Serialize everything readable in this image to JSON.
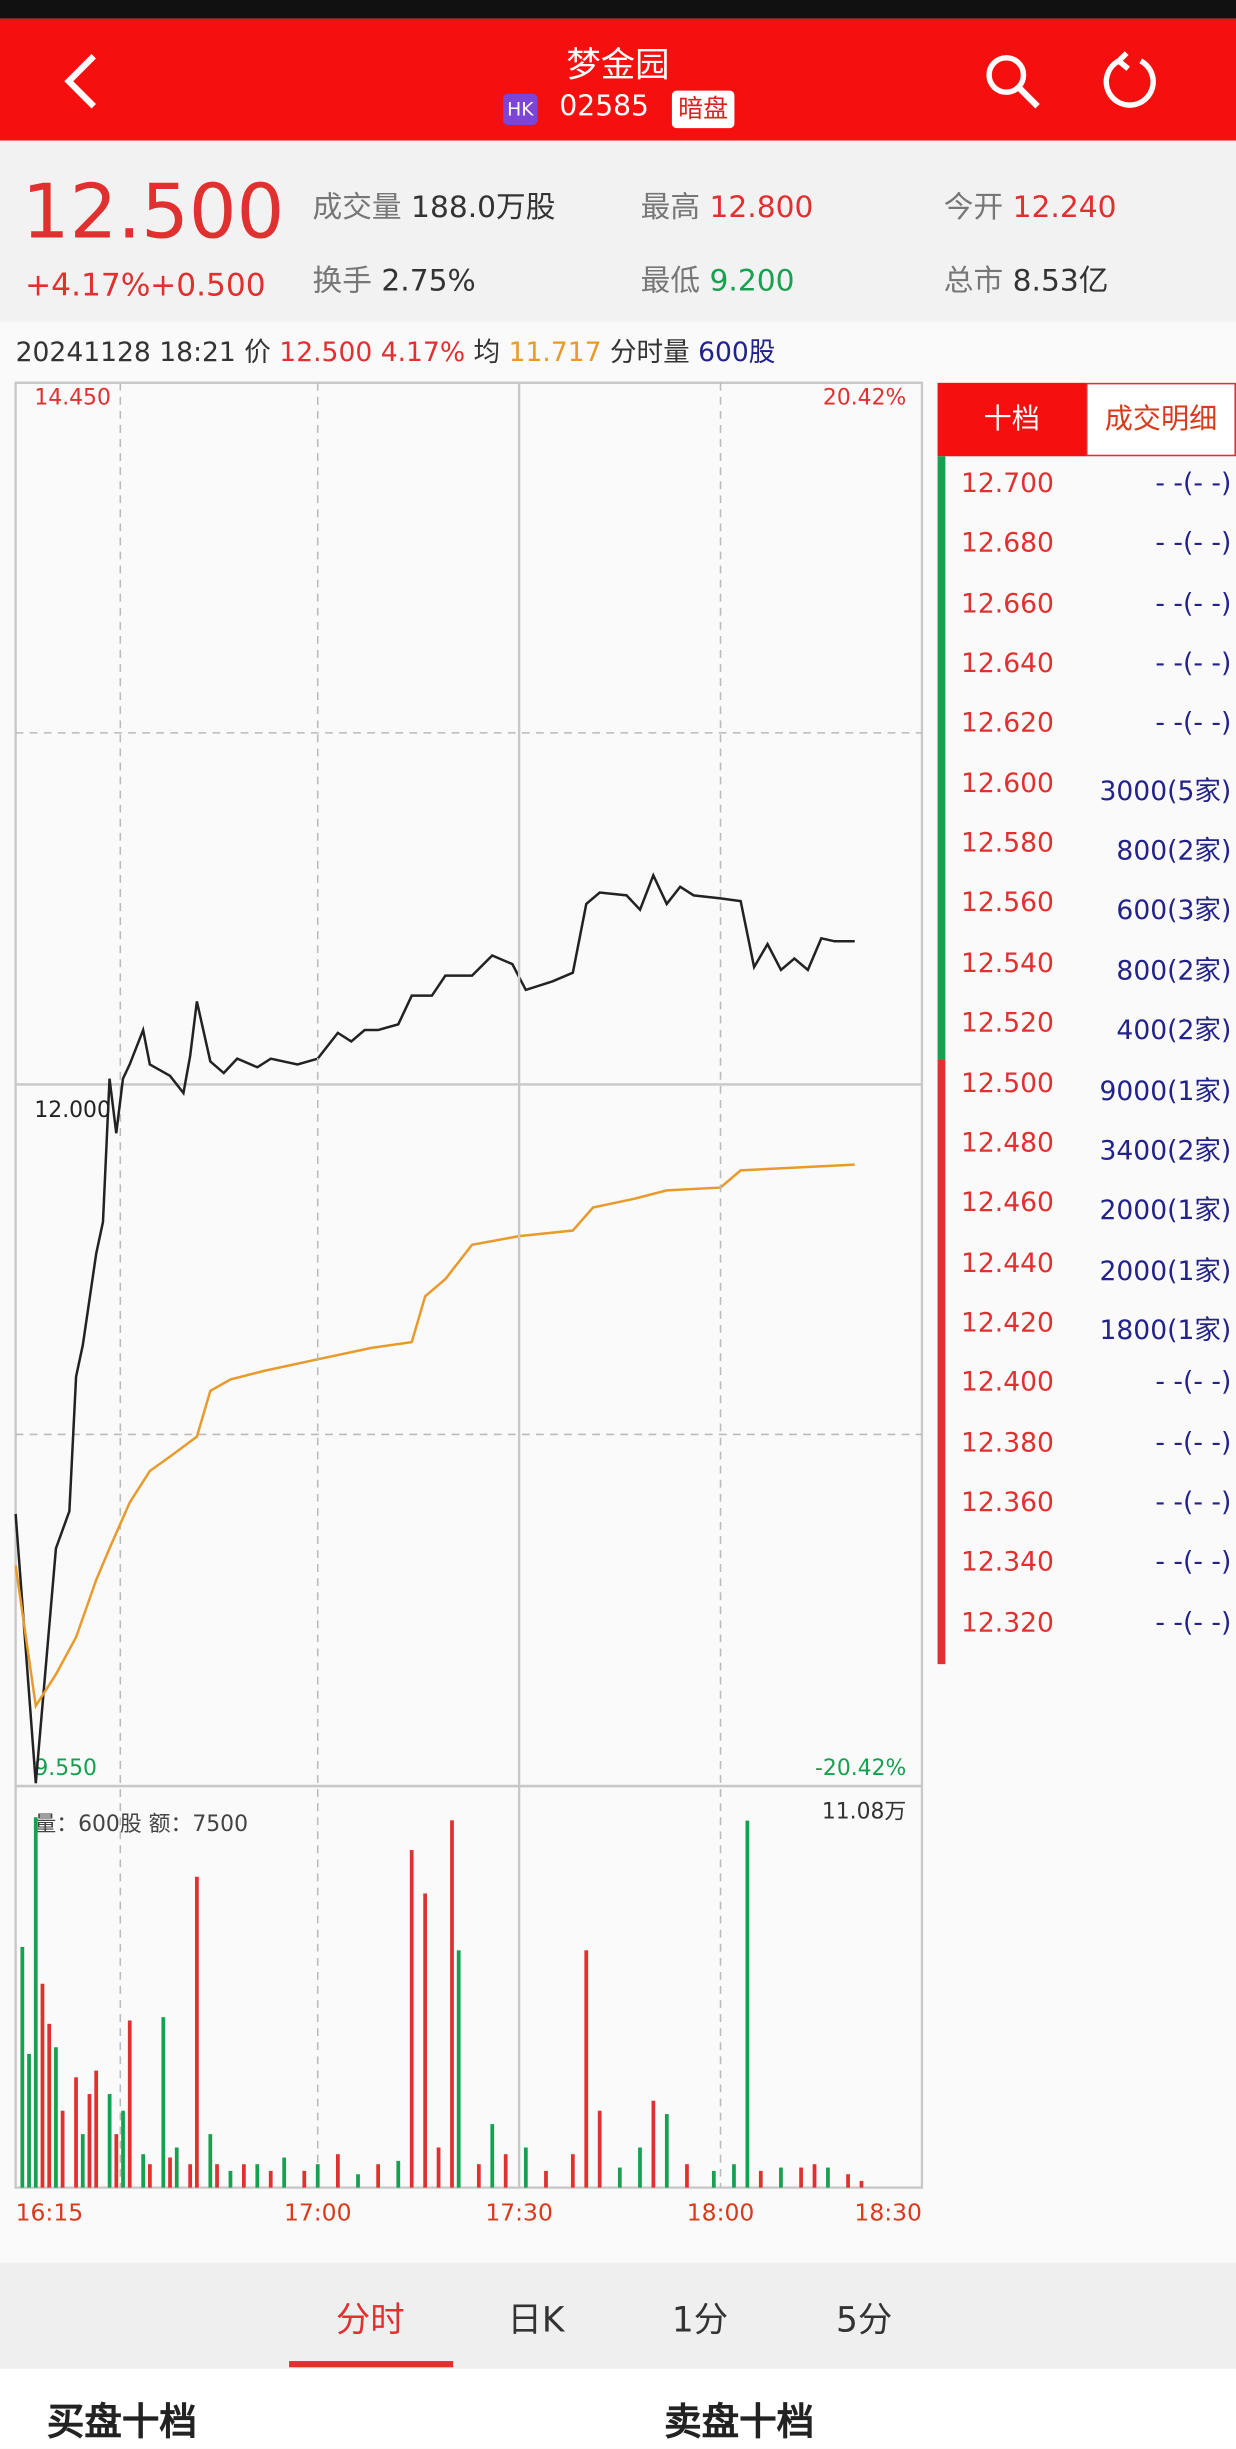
{
  "header": {
    "title": "梦金园",
    "market": "HK",
    "code": "02585",
    "badge": "暗盘"
  },
  "quote": {
    "price": "12.500",
    "change_pct": "+4.17%",
    "change": "+0.500",
    "stats": [
      {
        "label": "成交量",
        "value": "188.0万股"
      },
      {
        "label": "换手",
        "value": "2.75%"
      },
      {
        "label": "最高",
        "value": "12.800"
      },
      {
        "label": "最低",
        "value": "9.200"
      },
      {
        "label": "今开",
        "value": "12.240"
      },
      {
        "label": "总市",
        "value": "8.53亿"
      }
    ]
  },
  "info_line": {
    "date": "20241128",
    "time": "18:21",
    "price_label": "价",
    "price": "12.500",
    "pct": "4.17%",
    "avg_label": "均",
    "avg": "11.717",
    "vol_label": "分时量",
    "vol": "600股"
  },
  "chart_data": [
    {
      "type": "line",
      "xlim": [
        "16:15",
        "18:30"
      ],
      "ylim": [
        9.55,
        14.45
      ],
      "yticks": [
        {
          "value": 14.45,
          "label": "14.450"
        },
        {
          "value": 12,
          "label": "12.000"
        },
        {
          "value": 9.55,
          "label": "9.550"
        }
      ],
      "ytick_colors": [
        "#e03030",
        "#222222",
        "#17a050"
      ],
      "y2lim": [
        -20.42,
        20.42
      ],
      "y2ticks": [
        {
          "value": 20.42,
          "label": "20.42%"
        },
        {
          "value": -20.42,
          "label": "-20.42%"
        }
      ],
      "y2tick_colors": [
        "#e03030",
        "#17a050"
      ],
      "series": [
        {
          "color": "#222222",
          "x": [
            "16:15",
            "16:18",
            "16:21",
            "16:23",
            "16:24",
            "16:25",
            "16:27",
            "16:28",
            "16:29",
            "16:30",
            "16:31",
            "16:32",
            "16:34",
            "16:35",
            "16:38",
            "16:40",
            "16:41",
            "16:42",
            "16:44",
            "16:46",
            "16:48",
            "16:51",
            "16:53",
            "16:57",
            "17:00",
            "17:03",
            "17:05",
            "17:07",
            "17:09",
            "17:12",
            "17:14",
            "17:17",
            "17:19",
            "17:23",
            "17:26",
            "17:29",
            "17:31",
            "17:35",
            "17:38",
            "17:40",
            "17:42",
            "17:46",
            "17:48",
            "17:50",
            "17:52",
            "17:54",
            "17:56",
            "18:00",
            "18:03",
            "18:05",
            "18:07",
            "18:09",
            "18:11",
            "18:13",
            "18:15",
            "18:17",
            "18:19",
            "18:20"
          ],
          "values": [
            10.5,
            9.56,
            10.38,
            10.51,
            10.98,
            11.09,
            11.41,
            11.52,
            12.02,
            11.83,
            12.02,
            12.07,
            12.19,
            12.07,
            12.03,
            11.97,
            12.1,
            12.29,
            12.08,
            12.04,
            12.09,
            12.06,
            12.09,
            12.07,
            12.09,
            12.18,
            12.15,
            12.19,
            12.19,
            12.21,
            12.31,
            12.31,
            12.38,
            12.38,
            12.45,
            12.42,
            12.33,
            12.36,
            12.39,
            12.63,
            12.67,
            12.66,
            12.61,
            12.73,
            12.63,
            12.69,
            12.66,
            12.65,
            12.64,
            12.41,
            12.49,
            12.4,
            12.44,
            12.4,
            12.51,
            12.5,
            12.5,
            12.5
          ]
        },
        {
          "color": "#e89a2c",
          "x": [
            "16:15",
            "16:18",
            "16:21",
            "16:24",
            "16:27",
            "16:29",
            "16:32",
            "16:35",
            "16:38",
            "16:42",
            "16:44",
            "16:47",
            "16:52",
            "17:00",
            "17:08",
            "17:14",
            "17:16",
            "17:19",
            "17:23",
            "17:30",
            "17:38",
            "17:41",
            "17:47",
            "17:52",
            "18:00",
            "18:03",
            "18:20"
          ],
          "values": [
            10.32,
            9.83,
            9.94,
            10.07,
            10.27,
            10.38,
            10.54,
            10.65,
            10.7,
            10.77,
            10.93,
            10.97,
            11.0,
            11.04,
            11.08,
            11.1,
            11.26,
            11.32,
            11.44,
            11.47,
            11.49,
            11.57,
            11.6,
            11.63,
            11.64,
            11.7,
            11.72
          ]
        }
      ]
    },
    {
      "type": "bar",
      "annotation": "量：600股 额：7500",
      "xlim": [
        "16:15",
        "18:30"
      ],
      "xticks": [
        "16:15",
        "17:00",
        "17:30",
        "18:00",
        "18:30"
      ],
      "ylim": [
        0,
        110800
      ],
      "yticks": [
        {
          "value": 110800,
          "label": "11.08万"
        }
      ],
      "x": [
        "16:16",
        "16:17",
        "16:18",
        "16:19",
        "16:20",
        "16:21",
        "16:22",
        "16:24",
        "16:25",
        "16:26",
        "16:27",
        "16:29",
        "16:30",
        "16:31",
        "16:32",
        "16:34",
        "16:35",
        "16:37",
        "16:38",
        "16:39",
        "16:41",
        "16:42",
        "16:44",
        "16:45",
        "16:47",
        "16:49",
        "16:51",
        "16:53",
        "16:55",
        "16:58",
        "17:00",
        "17:03",
        "17:06",
        "17:09",
        "17:12",
        "17:14",
        "17:16",
        "17:18",
        "17:20",
        "17:21",
        "17:24",
        "17:26",
        "17:28",
        "17:31",
        "17:34",
        "17:38",
        "17:40",
        "17:42",
        "17:45",
        "17:48",
        "17:50",
        "17:52",
        "17:55",
        "17:59",
        "18:02",
        "18:04",
        "18:06",
        "18:09",
        "18:12",
        "18:14",
        "18:16",
        "18:19",
        "18:21"
      ],
      "values": [
        72000,
        40000,
        110800,
        61000,
        49000,
        42000,
        23000,
        33000,
        16000,
        28000,
        35000,
        28000,
        16000,
        23000,
        50000,
        10000,
        7000,
        51000,
        9000,
        12000,
        7000,
        93000,
        16000,
        7000,
        5000,
        7000,
        7000,
        5000,
        9000,
        5000,
        7000,
        10000,
        4000,
        7000,
        8000,
        101000,
        88000,
        12000,
        109900,
        71000,
        7000,
        19000,
        10000,
        12000,
        5000,
        10000,
        71000,
        23000,
        6000,
        12000,
        26000,
        22000,
        7000,
        5000,
        7000,
        109800,
        5000,
        6000,
        6000,
        7000,
        6000,
        4000,
        2000
      ],
      "colors": [
        "#17a050",
        "#17a050",
        "#17a050",
        "#e03030",
        "#e03030",
        "#17a050",
        "#e03030",
        "#e03030",
        "#17a050",
        "#e03030",
        "#e03030",
        "#17a050",
        "#e03030",
        "#17a050",
        "#e03030",
        "#17a050",
        "#e03030",
        "#17a050",
        "#e03030",
        "#17a050",
        "#e03030",
        "#e03030",
        "#17a050",
        "#e03030",
        "#17a050",
        "#e03030",
        "#17a050",
        "#e03030",
        "#17a050",
        "#e03030",
        "#17a050",
        "#e03030",
        "#17a050",
        "#e03030",
        "#17a050",
        "#e03030",
        "#e03030",
        "#e03030",
        "#e03030",
        "#17a050",
        "#e03030",
        "#17a050",
        "#e03030",
        "#17a050",
        "#e03030",
        "#e03030",
        "#e03030",
        "#e03030",
        "#17a050",
        "#17a050",
        "#e03030",
        "#17a050",
        "#e03030",
        "#17a050",
        "#17a050",
        "#17a050",
        "#e03030",
        "#17a050",
        "#e03030",
        "#e03030",
        "#17a050",
        "#e03030",
        "#e03030"
      ]
    }
  ],
  "order_book": {
    "tabs": [
      "十档",
      "成交明细"
    ],
    "asks": [
      {
        "price": "12.700",
        "volume": "- -(- -)"
      },
      {
        "price": "12.680",
        "volume": "- -(- -)"
      },
      {
        "price": "12.660",
        "volume": "- -(- -)"
      },
      {
        "price": "12.640",
        "volume": "- -(- -)"
      },
      {
        "price": "12.620",
        "volume": "- -(- -)"
      },
      {
        "price": "12.600",
        "volume": "3000(5家)"
      },
      {
        "price": "12.580",
        "volume": "800(2家)"
      },
      {
        "price": "12.560",
        "volume": "600(3家)"
      },
      {
        "price": "12.540",
        "volume": "800(2家)"
      },
      {
        "price": "12.520",
        "volume": "400(2家)"
      }
    ],
    "bids": [
      {
        "price": "12.500",
        "volume": "9000(1家)"
      },
      {
        "price": "12.480",
        "volume": "3400(2家)"
      },
      {
        "price": "12.460",
        "volume": "2000(1家)"
      },
      {
        "price": "12.440",
        "volume": "2000(1家)"
      },
      {
        "price": "12.420",
        "volume": "1800(1家)"
      },
      {
        "price": "12.400",
        "volume": "- -(- -)"
      },
      {
        "price": "12.380",
        "volume": "- -(- -)"
      },
      {
        "price": "12.360",
        "volume": "- -(- -)"
      },
      {
        "price": "12.340",
        "volume": "- -(- -)"
      },
      {
        "price": "12.320",
        "volume": "- -(- -)"
      }
    ]
  },
  "period_tabs": [
    "分时",
    "日K",
    "1分",
    "5分"
  ],
  "footer": [
    "买盘十档",
    "卖盘十档"
  ]
}
